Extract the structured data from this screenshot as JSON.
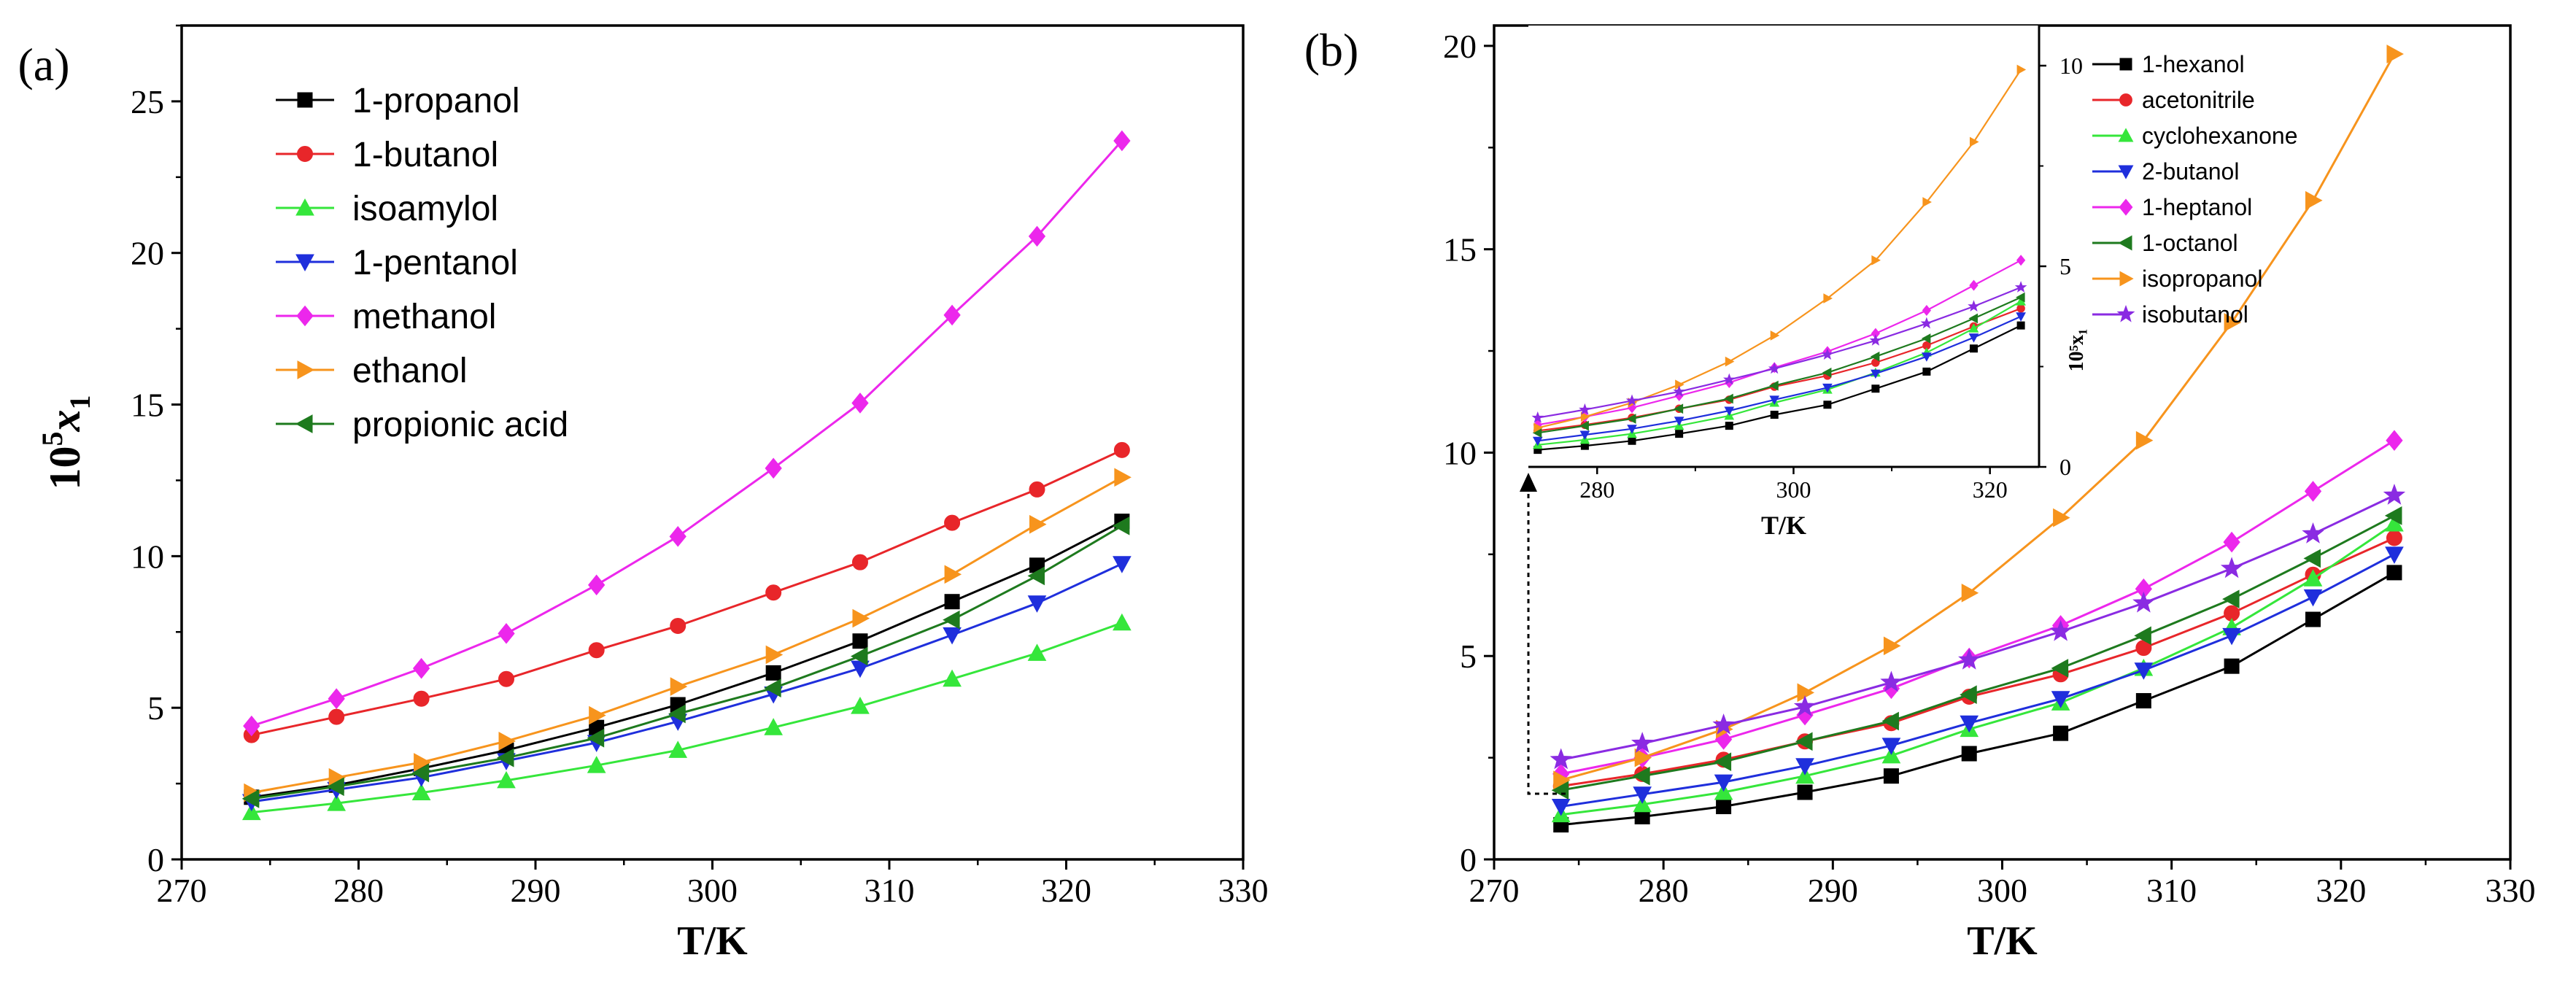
{
  "chart_data": [
    {
      "type": "line",
      "panel_label": "(a)",
      "xlabel": "T/K",
      "ylabel_base": "10",
      "ylabel_sup": "5",
      "ylabel_var": "x",
      "ylabel_sub": "1",
      "xlim": [
        270,
        330
      ],
      "ylim": [
        0,
        27.5
      ],
      "xticks": [
        "270",
        "280",
        "290",
        "300",
        "310",
        "320",
        "330"
      ],
      "yticks": [
        "0",
        "5",
        "10",
        "15",
        "20",
        "25"
      ],
      "legend_position": "top-left",
      "x": [
        273.95,
        278.75,
        283.55,
        288.35,
        293.45,
        298.05,
        303.45,
        308.35,
        313.55,
        318.35,
        323.15
      ],
      "series": [
        {
          "name": "1-propanol",
          "color": "#000000",
          "marker": "square",
          "values": [
            2.05,
            2.45,
            3.0,
            3.6,
            4.35,
            5.1,
            6.15,
            7.2,
            8.5,
            9.7,
            11.15
          ]
        },
        {
          "name": "1-butanol",
          "color": "#e8262a",
          "marker": "circle",
          "values": [
            4.1,
            4.7,
            5.3,
            5.95,
            6.9,
            7.7,
            8.8,
            9.8,
            11.1,
            12.2,
            13.5
          ]
        },
        {
          "name": "isoamylol",
          "color": "#35e63b",
          "marker": "triangle-up",
          "values": [
            1.55,
            1.85,
            2.2,
            2.6,
            3.1,
            3.6,
            4.35,
            5.05,
            5.95,
            6.8,
            7.8
          ]
        },
        {
          "name": "1-pentanol",
          "color": "#1f2fdc",
          "marker": "triangle-down",
          "values": [
            1.9,
            2.3,
            2.7,
            3.25,
            3.85,
            4.55,
            5.45,
            6.3,
            7.4,
            8.45,
            9.75
          ]
        },
        {
          "name": "methanol",
          "color": "#ec27ec",
          "marker": "diamond",
          "values": [
            4.4,
            5.3,
            6.3,
            7.45,
            9.05,
            10.65,
            12.9,
            15.05,
            17.95,
            20.55,
            23.7
          ]
        },
        {
          "name": "ethanol",
          "color": "#f7941d",
          "marker": "triangle-right",
          "values": [
            2.2,
            2.7,
            3.2,
            3.9,
            4.75,
            5.7,
            6.75,
            7.95,
            9.4,
            11.05,
            12.6
          ]
        },
        {
          "name": "propionic acid",
          "color": "#1e7a1e",
          "marker": "triangle-left",
          "values": [
            2.0,
            2.4,
            2.85,
            3.35,
            4.0,
            4.8,
            5.65,
            6.7,
            7.9,
            9.35,
            11.0
          ]
        }
      ]
    },
    {
      "type": "line",
      "panel_label": "(b)",
      "xlabel": "T/K",
      "xlim": [
        270,
        330
      ],
      "ylim": [
        0,
        20.5
      ],
      "xticks": [
        "270",
        "280",
        "290",
        "300",
        "310",
        "320",
        "330"
      ],
      "yticks": [
        "0",
        "5",
        "10",
        "15",
        "20"
      ],
      "legend_position": "top-right",
      "x": [
        273.95,
        278.75,
        283.55,
        288.35,
        293.45,
        298.05,
        303.45,
        308.35,
        313.55,
        318.35,
        323.15
      ],
      "series": [
        {
          "name": "1-hexanol",
          "color": "#000000",
          "marker": "square",
          "values": [
            0.85,
            1.05,
            1.3,
            1.65,
            2.05,
            2.6,
            3.1,
            3.9,
            4.75,
            5.9,
            7.05
          ]
        },
        {
          "name": "acetonitrile",
          "color": "#e8262a",
          "marker": "circle",
          "values": [
            1.8,
            2.1,
            2.45,
            2.9,
            3.35,
            4.0,
            4.55,
            5.2,
            6.05,
            7.0,
            7.9
          ]
        },
        {
          "name": "cyclohexanone",
          "color": "#35e63b",
          "marker": "triangle-up",
          "values": [
            1.1,
            1.35,
            1.65,
            2.05,
            2.55,
            3.2,
            3.85,
            4.7,
            5.7,
            6.9,
            8.25
          ]
        },
        {
          "name": "2-butanol",
          "color": "#1f2fdc",
          "marker": "triangle-down",
          "values": [
            1.3,
            1.6,
            1.9,
            2.3,
            2.8,
            3.35,
            3.95,
            4.65,
            5.5,
            6.45,
            7.5
          ]
        },
        {
          "name": "1-heptanol",
          "color": "#ec27ec",
          "marker": "diamond",
          "values": [
            2.1,
            2.5,
            2.95,
            3.55,
            4.2,
            4.95,
            5.75,
            6.65,
            7.8,
            9.05,
            10.3
          ]
        },
        {
          "name": "1-octanol",
          "color": "#1e7a1e",
          "marker": "triangle-left",
          "values": [
            1.7,
            2.05,
            2.4,
            2.9,
            3.4,
            4.05,
            4.7,
            5.5,
            6.4,
            7.4,
            8.45
          ]
        },
        {
          "name": "isopropanol",
          "color": "#f7941d",
          "marker": "triangle-right",
          "values": [
            1.95,
            2.5,
            3.2,
            4.1,
            5.25,
            6.55,
            8.4,
            10.3,
            13.2,
            16.2,
            19.8
          ]
        },
        {
          "name": "isobutanol",
          "color": "#8a2be2",
          "marker": "star",
          "values": [
            2.45,
            2.85,
            3.3,
            3.75,
            4.35,
            4.9,
            5.6,
            6.3,
            7.15,
            8.0,
            8.95
          ]
        }
      ],
      "inset": {
        "xlabel": "T/K",
        "ylabel": "10⁵x₁",
        "xlim": [
          273,
          325
        ],
        "ylim": [
          0,
          11
        ],
        "xticks": [
          "280",
          "300",
          "320"
        ],
        "yticks": [
          "0",
          "5",
          "10"
        ],
        "uses_parent_series": true
      }
    }
  ]
}
